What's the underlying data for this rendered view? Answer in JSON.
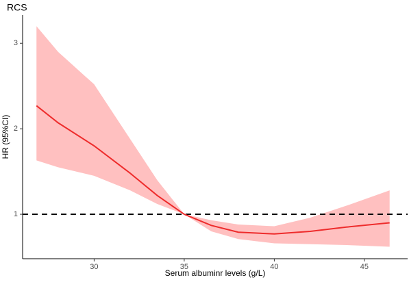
{
  "chart_data": {
    "type": "line",
    "title": "RCS",
    "xlabel": "Serum albuminr levels (g/L)",
    "ylabel": "HR (95%CI)",
    "x": [
      26.8,
      28,
      30,
      32,
      33.5,
      35,
      36.5,
      38,
      40,
      42,
      44,
      46.4
    ],
    "values": [
      2.27,
      2.07,
      1.8,
      1.48,
      1.22,
      1.0,
      0.87,
      0.79,
      0.77,
      0.8,
      0.85,
      0.9
    ],
    "lower": [
      1.63,
      1.55,
      1.45,
      1.28,
      1.12,
      1.0,
      0.8,
      0.71,
      0.66,
      0.65,
      0.64,
      0.62
    ],
    "upper": [
      3.2,
      2.9,
      2.52,
      1.88,
      1.4,
      1.0,
      0.93,
      0.88,
      0.86,
      0.96,
      1.1,
      1.28
    ],
    "color": "#ee2c2c",
    "band_color": "#ffc0c0",
    "reference_line": 1,
    "xlim": [
      26.03,
      47.4
    ],
    "ylim": [
      0.48,
      3.33
    ],
    "xticks": [
      30,
      35,
      40,
      45
    ],
    "yticks": [
      1,
      2,
      3
    ]
  }
}
